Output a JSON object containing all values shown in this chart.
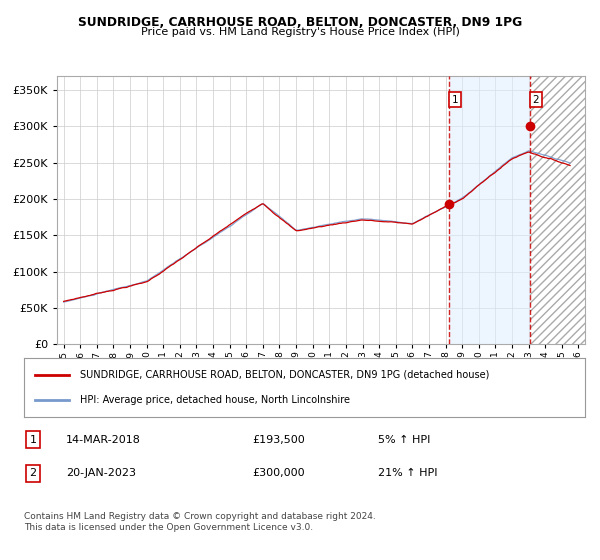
{
  "title": "SUNDRIDGE, CARRHOUSE ROAD, BELTON, DONCASTER, DN9 1PG",
  "subtitle": "Price paid vs. HM Land Registry's House Price Index (HPI)",
  "legend_line1": "SUNDRIDGE, CARRHOUSE ROAD, BELTON, DONCASTER, DN9 1PG (detached house)",
  "legend_line2": "HPI: Average price, detached house, North Lincolnshire",
  "annotation1_date": "14-MAR-2018",
  "annotation1_price": "£193,500",
  "annotation1_hpi": "5% ↑ HPI",
  "annotation2_date": "20-JAN-2023",
  "annotation2_price": "£300,000",
  "annotation2_hpi": "21% ↑ HPI",
  "footer": "Contains HM Land Registry data © Crown copyright and database right 2024.\nThis data is licensed under the Open Government Licence v3.0.",
  "ylim": [
    0,
    370000
  ],
  "yticks": [
    0,
    50000,
    100000,
    150000,
    200000,
    250000,
    300000,
    350000
  ],
  "red_line_color": "#cc0000",
  "blue_line_color": "#7799cc",
  "blue_fill_color": "#ddeeff",
  "hatch_fill_color": "#e8e8e8",
  "vline_color": "#cc0000",
  "marker_color": "#cc0000",
  "box_color": "#cc0000",
  "bg_color": "#ffffff",
  "grid_color": "#cccccc",
  "vline1_x": 2018.2,
  "vline2_x": 2023.08,
  "sale1_x": 2018.2,
  "sale1_y": 193500,
  "sale2_x": 2023.08,
  "sale2_y": 300000,
  "xmin": 1994.6,
  "xmax": 2026.4
}
